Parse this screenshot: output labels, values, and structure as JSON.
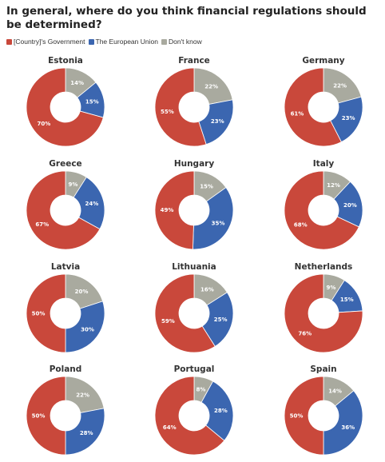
{
  "header": {
    "title": "In general, where do you think financial regulations should be determined?"
  },
  "colors": {
    "government": "#c9483b",
    "eu": "#3b66b0",
    "dont_know": "#a9aa9f",
    "label_text": "#ffffff",
    "country_text": "#333333"
  },
  "chart_data": {
    "type": "pie",
    "variant": "donut",
    "legend_position": "top-left",
    "series": [
      {
        "name": "[Country]'s Government",
        "color_key": "government"
      },
      {
        "name": "The European Union",
        "color_key": "eu"
      },
      {
        "name": "Don't know",
        "color_key": "dont_know"
      }
    ],
    "countries": [
      {
        "name": "Estonia",
        "values": [
          70,
          15,
          14
        ],
        "labels": [
          "70%",
          "15%",
          "14%"
        ]
      },
      {
        "name": "France",
        "values": [
          55,
          23,
          22
        ],
        "labels": [
          "55%",
          "23%",
          "22%"
        ]
      },
      {
        "name": "Germany",
        "values": [
          61,
          23,
          22
        ],
        "labels": [
          "61%",
          "23%",
          "22%"
        ]
      },
      {
        "name": "Greece",
        "values": [
          67,
          24,
          9
        ],
        "labels": [
          "67%",
          "24%",
          "9%"
        ]
      },
      {
        "name": "Hungary",
        "values": [
          49,
          35,
          15
        ],
        "labels": [
          "49%",
          "35%",
          "15%"
        ]
      },
      {
        "name": "Italy",
        "values": [
          68,
          20,
          12
        ],
        "labels": [
          "68%",
          "20%",
          "12%"
        ]
      },
      {
        "name": "Latvia",
        "values": [
          50,
          30,
          20
        ],
        "labels": [
          "50%",
          "30%",
          "20%"
        ]
      },
      {
        "name": "Lithuania",
        "values": [
          59,
          25,
          16
        ],
        "labels": [
          "59%",
          "25%",
          "16%"
        ]
      },
      {
        "name": "Netherlands",
        "values": [
          76,
          15,
          9
        ],
        "labels": [
          "76%",
          "15%",
          "9%"
        ]
      },
      {
        "name": "Poland",
        "values": [
          50,
          28,
          22
        ],
        "labels": [
          "50%",
          "28%",
          "22%"
        ]
      },
      {
        "name": "Portugal",
        "values": [
          64,
          28,
          8
        ],
        "labels": [
          "64%",
          "28%",
          "8%"
        ]
      },
      {
        "name": "Spain",
        "values": [
          50,
          36,
          14
        ],
        "labels": [
          "50%",
          "36%",
          "14%"
        ]
      }
    ]
  }
}
